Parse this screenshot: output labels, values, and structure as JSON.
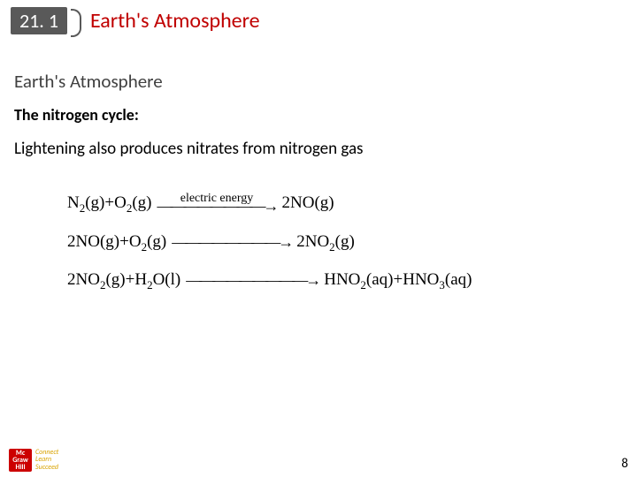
{
  "header": {
    "section_number": "21. 1",
    "title": "Earth's Atmosphere"
  },
  "content": {
    "subtitle": "Earth's Atmosphere",
    "subheading": "The nitrogen cycle:",
    "body": "Lightening also produces nitrates from nitrogen gas"
  },
  "equations": {
    "eq1": {
      "left_a": "N",
      "left_a_sub": "2",
      "left_a_state": "(g)",
      "plus": " + ",
      "left_b": "O",
      "left_b_sub": "2",
      "left_b_state": "(g)",
      "arrow_label": "electric energy",
      "right": "2NO",
      "right_state": "(g)"
    },
    "eq2": {
      "left_a": "2NO",
      "left_a_state": "(g)",
      "plus": " + ",
      "left_b": "O",
      "left_b_sub": "2",
      "left_b_state": "(g)",
      "right": "2NO",
      "right_sub": "2",
      "right_state": "(g)"
    },
    "eq3": {
      "left_a": "2NO",
      "left_a_sub": "2",
      "left_a_state": "(g)",
      "plus": " + ",
      "left_b": "H",
      "left_b_sub": "2",
      "left_b_post": "O",
      "left_b_state": "(l)",
      "right_a": "HNO",
      "right_a_sub": "2",
      "right_a_state": "(aq)",
      "plus2": " + ",
      "right_b": "HNO",
      "right_b_sub": "3",
      "right_b_state": "(aq)"
    }
  },
  "footer": {
    "logo_line1": "Mc",
    "logo_line2": "Graw",
    "logo_line3": "Hill",
    "tag1": "Connect",
    "tag2": "Learn",
    "tag3": "Succeed",
    "page": "8"
  },
  "style": {
    "title_color": "#c00000",
    "section_bg": "#595959"
  }
}
